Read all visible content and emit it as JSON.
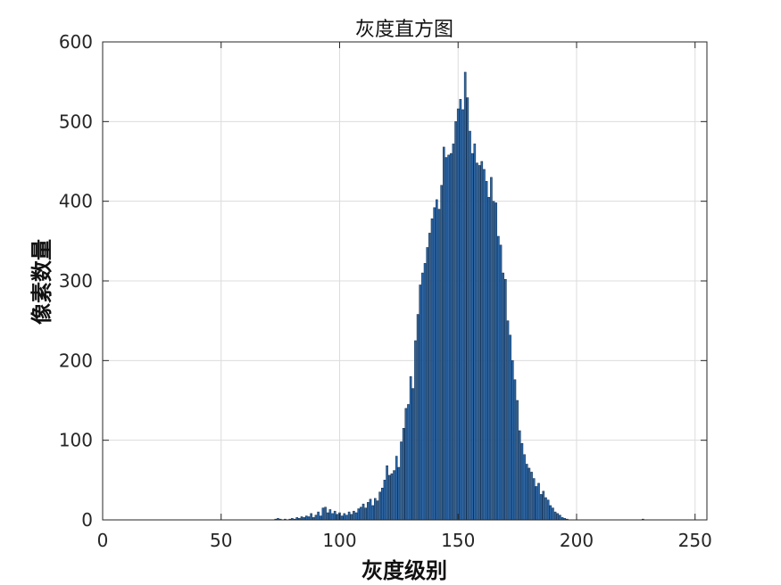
{
  "chart_data": {
    "type": "bar",
    "title": "灰度直方图",
    "xlabel": "灰度级别",
    "ylabel": "像素数量",
    "xlim": [
      0,
      255
    ],
    "ylim": [
      0,
      600
    ],
    "xticks": [
      0,
      50,
      100,
      150,
      200,
      250
    ],
    "yticks": [
      0,
      100,
      200,
      300,
      400,
      500,
      600
    ],
    "grid": true,
    "x": [
      73,
      74,
      75,
      76,
      77,
      78,
      79,
      80,
      81,
      82,
      83,
      84,
      85,
      86,
      87,
      88,
      89,
      90,
      91,
      92,
      93,
      94,
      95,
      96,
      97,
      98,
      99,
      100,
      101,
      102,
      103,
      104,
      105,
      106,
      107,
      108,
      109,
      110,
      111,
      112,
      113,
      114,
      115,
      116,
      117,
      118,
      119,
      120,
      121,
      122,
      123,
      124,
      125,
      126,
      127,
      128,
      129,
      130,
      131,
      132,
      133,
      134,
      135,
      136,
      137,
      138,
      139,
      140,
      141,
      142,
      143,
      144,
      145,
      146,
      147,
      148,
      149,
      150,
      151,
      152,
      153,
      154,
      155,
      156,
      157,
      158,
      159,
      160,
      161,
      162,
      163,
      164,
      165,
      166,
      167,
      168,
      169,
      170,
      171,
      172,
      173,
      174,
      175,
      176,
      177,
      178,
      179,
      180,
      181,
      182,
      183,
      184,
      185,
      186,
      187,
      188,
      189,
      190,
      191,
      192,
      193,
      194,
      195,
      196,
      228
    ],
    "y": [
      1,
      2,
      1,
      0,
      1,
      0,
      1,
      2,
      1,
      3,
      2,
      4,
      3,
      5,
      4,
      8,
      3,
      6,
      10,
      5,
      15,
      16,
      9,
      13,
      8,
      11,
      7,
      9,
      5,
      8,
      6,
      10,
      7,
      11,
      9,
      14,
      16,
      20,
      15,
      22,
      26,
      18,
      27,
      24,
      35,
      40,
      50,
      68,
      56,
      58,
      62,
      80,
      66,
      98,
      115,
      140,
      145,
      180,
      165,
      225,
      258,
      295,
      310,
      322,
      342,
      360,
      378,
      392,
      402,
      390,
      420,
      468,
      455,
      458,
      460,
      472,
      500,
      516,
      528,
      515,
      562,
      530,
      488,
      460,
      472,
      448,
      445,
      450,
      440,
      425,
      405,
      430,
      400,
      398,
      356,
      345,
      310,
      302,
      250,
      232,
      200,
      176,
      150,
      112,
      96,
      82,
      70,
      65,
      60,
      52,
      42,
      46,
      32,
      36,
      28,
      25,
      18,
      15,
      10,
      8,
      6,
      3,
      2,
      1,
      1
    ],
    "colors": {
      "bar_fill": "#2c66a6",
      "bar_edge": "#0e2c4e",
      "grid": "#dcdcdc",
      "axes": "#262626"
    }
  }
}
